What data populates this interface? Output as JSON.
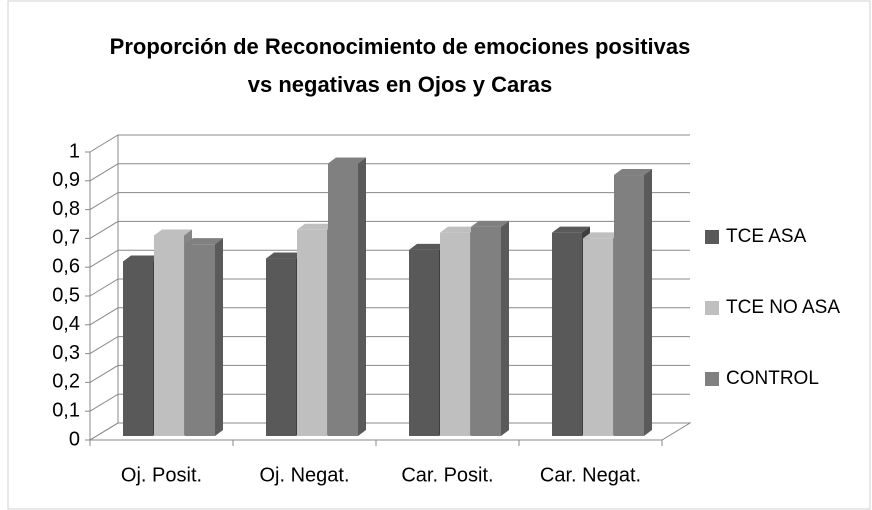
{
  "chart_data": {
    "type": "bar3d",
    "title": [
      "Proporción de Reconocimiento de emociones positivas",
      "vs negativas en Ojos y Caras"
    ],
    "categories": [
      "Oj. Posit.",
      "Oj. Negat.",
      "Car. Posit.",
      "Car. Negat."
    ],
    "series": [
      {
        "name": "TCE ASA",
        "color": "#595959",
        "values": [
          0.62,
          0.63,
          0.66,
          0.72
        ]
      },
      {
        "name": "TCE NO ASA",
        "color": "#bfbfbf",
        "values": [
          0.71,
          0.73,
          0.72,
          0.7
        ]
      },
      {
        "name": "CONTROL",
        "color": "#808080",
        "values": [
          0.68,
          0.96,
          0.74,
          0.92
        ]
      }
    ],
    "ylim": [
      0,
      1
    ],
    "yticks": [
      0,
      {
        "value": 0.1,
        "label": "0,1"
      },
      {
        "value": 0.2,
        "label": "0,2"
      },
      {
        "value": 0.3,
        "label": "0,3"
      },
      {
        "value": 0.4,
        "label": "0,4"
      },
      {
        "value": 0.5,
        "label": "0,5"
      },
      {
        "value": 0.6,
        "label": "0,6"
      },
      {
        "value": 0.7,
        "label": "0,7"
      },
      {
        "value": 0.8,
        "label": "0,8"
      },
      {
        "value": 0.9,
        "label": "0,9"
      },
      1
    ],
    "grid": true,
    "legend": "right"
  }
}
